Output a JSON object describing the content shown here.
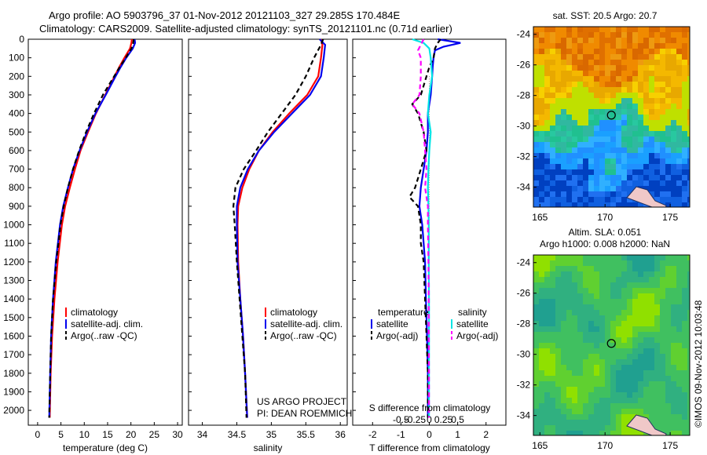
{
  "header": {
    "line1": "Argo profile: AO 5903796_37 01-Nov-2012 20121103_327 29.285S 170.484E",
    "line2": "Climatology: CARS2009. Satellite-adjusted climatology: synTS_20121101.nc (0.71d earlier)"
  },
  "colors": {
    "clim": "#ff0000",
    "sat": "#0000ee",
    "argo": "#000000",
    "sat_s": "#00e5e5",
    "argo_s": "#ff00ff"
  },
  "chart_data": [
    {
      "type": "line",
      "xlabel": "temperature (deg C)",
      "ylabel": "",
      "xlim": [
        -2,
        31
      ],
      "ylim": [
        2080,
        0
      ],
      "xticks": [
        "0",
        "5",
        "10",
        "15",
        "20",
        "25",
        "30"
      ],
      "yticks": [
        "0",
        "100",
        "200",
        "300",
        "400",
        "500",
        "600",
        "700",
        "800",
        "900",
        "1000",
        "1100",
        "1200",
        "1300",
        "1400",
        "1500",
        "1600",
        "1700",
        "1800",
        "1900",
        "2000"
      ],
      "legend": [
        "climatology",
        "satellite-adj. clim.",
        "Argo(..raw -QC)"
      ],
      "series": [
        {
          "name": "climatology",
          "y": [
            0,
            20,
            50,
            100,
            150,
            200,
            300,
            400,
            500,
            600,
            700,
            800,
            900,
            1000,
            1200,
            1400,
            1600,
            1800,
            2040
          ],
          "x": [
            20.2,
            20.1,
            19.8,
            18.6,
            17.5,
            16.5,
            14.5,
            12.5,
            10.8,
            9.2,
            8.0,
            6.9,
            5.9,
            5.2,
            4.3,
            3.6,
            3.1,
            2.8,
            2.6
          ]
        },
        {
          "name": "satellite-adj. clim.",
          "y": [
            0,
            20,
            50,
            100,
            150,
            200,
            300,
            400,
            500,
            600,
            700,
            800,
            900,
            1000,
            1200,
            1400,
            1600,
            1800,
            2040
          ],
          "x": [
            20.8,
            20.9,
            20.4,
            19.0,
            17.8,
            16.7,
            14.6,
            12.4,
            10.6,
            9.0,
            7.6,
            6.5,
            5.5,
            4.8,
            3.9,
            3.3,
            2.9,
            2.7,
            2.5
          ]
        },
        {
          "name": "Argo(..raw -QC)",
          "y": [
            0,
            20,
            50,
            100,
            150,
            200,
            300,
            400,
            500,
            600,
            700,
            800,
            900,
            1000,
            1200,
            1400,
            1600,
            1800,
            2040
          ],
          "x": [
            20.6,
            20.5,
            20.1,
            18.9,
            17.6,
            16.4,
            14.0,
            12.1,
            10.4,
            8.9,
            7.6,
            6.5,
            5.6,
            4.9,
            4.0,
            3.3,
            2.9,
            2.7,
            2.5
          ]
        }
      ]
    },
    {
      "type": "line",
      "xlabel": "salinity",
      "xlim": [
        33.8,
        36.1
      ],
      "ylim": [
        2080,
        0
      ],
      "xticks": [
        "34",
        "34.5",
        "35",
        "35.5",
        "36"
      ],
      "legend": [
        "climatology",
        "satellite-adj. clim.",
        "Argo(..raw -QC)"
      ],
      "series": [
        {
          "name": "climatology",
          "y": [
            0,
            30,
            100,
            200,
            300,
            400,
            500,
            600,
            700,
            800,
            900,
            1000,
            1200,
            1400,
            1600,
            1800,
            2040
          ],
          "x": [
            35.72,
            35.74,
            35.72,
            35.68,
            35.52,
            35.26,
            35.02,
            34.82,
            34.68,
            34.58,
            34.52,
            34.51,
            34.52,
            34.55,
            34.59,
            34.62,
            34.65
          ]
        },
        {
          "name": "satellite-adj. clim.",
          "y": [
            0,
            30,
            100,
            200,
            300,
            400,
            500,
            600,
            700,
            800,
            900,
            1000,
            1200,
            1400,
            1600,
            1800,
            2040
          ],
          "x": [
            35.7,
            35.78,
            35.76,
            35.72,
            35.56,
            35.3,
            35.04,
            34.82,
            34.66,
            34.55,
            34.5,
            34.5,
            34.51,
            34.55,
            34.59,
            34.62,
            34.65
          ]
        },
        {
          "name": "Argo(..raw -QC)",
          "y": [
            0,
            30,
            100,
            200,
            300,
            400,
            500,
            600,
            700,
            800,
            900,
            1000,
            1200,
            1400,
            1600,
            1800,
            2040
          ],
          "x": [
            35.75,
            35.72,
            35.62,
            35.5,
            35.35,
            35.15,
            34.95,
            34.78,
            34.6,
            34.48,
            34.45,
            34.47,
            34.5,
            34.54,
            34.58,
            34.62,
            34.64
          ]
        }
      ]
    },
    {
      "type": "line",
      "xlabel": "T difference from climatology",
      "xlabel_top": "S difference from climatology",
      "xlim": [
        -2.7,
        2.7
      ],
      "ylim": [
        2080,
        0
      ],
      "xticks": [
        "-2",
        "-1",
        "0",
        "1",
        "2"
      ],
      "xticks_top": [
        {
          "v": -1,
          "label": "-0.5"
        },
        {
          "v": -0.5,
          "label": "-0.25"
        },
        {
          "v": 0,
          "label": "0"
        },
        {
          "v": 0.5,
          "label": "0.25"
        },
        {
          "v": 1,
          "label": "0.5"
        }
      ],
      "legend_headers": [
        "temperature",
        "salinity"
      ],
      "legend": [
        "satellite",
        "Argo(-adj)",
        "satellite",
        "Argo(-adj)"
      ],
      "series": [
        {
          "name": "satellite",
          "y": [
            0,
            20,
            40,
            60,
            100,
            150,
            200,
            300,
            400,
            500,
            600,
            700,
            800,
            900,
            1000,
            1200,
            1400,
            1600,
            1800,
            2040
          ],
          "x": [
            0.3,
            1.1,
            0.5,
            0.2,
            0.15,
            0.12,
            0.1,
            0.05,
            -0.05,
            -0.05,
            -0.1,
            -0.2,
            -0.3,
            -0.35,
            -0.25,
            -0.15,
            -0.12,
            -0.08,
            -0.05,
            -0.05
          ]
        },
        {
          "name": "Argo(-adj)",
          "y": [
            0,
            20,
            50,
            100,
            150,
            200,
            300,
            350,
            400,
            500,
            600,
            700,
            800,
            850,
            900,
            1000,
            1100,
            1200,
            1400,
            1600,
            1800,
            2040
          ],
          "x": [
            0.4,
            0.3,
            0.2,
            0.15,
            0.0,
            -0.1,
            -0.3,
            -0.6,
            -0.4,
            -0.2,
            -0.1,
            -0.3,
            -0.5,
            -0.7,
            -0.4,
            -0.3,
            -0.3,
            -0.2,
            -0.15,
            -0.1,
            -0.05,
            -0.05
          ]
        },
        {
          "name": "satellite",
          "y": [
            0,
            20,
            50,
            100,
            200,
            300,
            400,
            500,
            600,
            700,
            800,
            900,
            1000,
            1200,
            1400,
            1600,
            1800,
            2040
          ],
          "x": [
            -0.6,
            -0.2,
            0.0,
            0.05,
            0.1,
            0.0,
            -0.05,
            0.05,
            0.0,
            -0.03,
            -0.05,
            -0.03,
            -0.02,
            -0.02,
            -0.01,
            -0.01,
            -0.01,
            -0.01
          ]
        },
        {
          "name": "Argo(-adj)",
          "y": [
            0,
            30,
            60,
            100,
            200,
            300,
            350,
            400,
            500,
            600,
            700,
            800,
            900,
            1000,
            1200,
            1400,
            1600,
            1800,
            2040
          ],
          "x": [
            -0.2,
            -0.3,
            -0.4,
            -0.3,
            -0.3,
            -0.35,
            -0.6,
            -0.35,
            -0.2,
            -0.15,
            -0.1,
            -0.15,
            -0.05,
            -0.05,
            -0.03,
            -0.02,
            -0.02,
            -0.01,
            -0.01
          ]
        }
      ]
    },
    {
      "type": "heatmap",
      "title": "sat. SST: 20.5 Argo: 20.7",
      "xlim": [
        164.5,
        176.5
      ],
      "ylim": [
        -35.3,
        -23.5
      ],
      "xticks": [
        "165",
        "170",
        "175"
      ],
      "yticks": [
        "-24",
        "-26",
        "-28",
        "-30",
        "-32",
        "-34"
      ],
      "marker": {
        "x": 170.484,
        "y": -29.285
      }
    },
    {
      "type": "heatmap",
      "title": "Altim. SLA: 0.051",
      "subtitle": "Argo h1000: 0.008 h2000: NaN",
      "xlim": [
        164.5,
        176.5
      ],
      "ylim": [
        -35.3,
        -23.5
      ],
      "xticks": [
        "165",
        "170",
        "175"
      ],
      "yticks": [
        "-24",
        "-26",
        "-28",
        "-30",
        "-32",
        "-34"
      ],
      "marker": {
        "x": 170.484,
        "y": -29.285
      }
    }
  ],
  "credits": {
    "project": "US ARGO PROJECT",
    "pi": "PI: DEAN ROEMMICH",
    "timestamp": "©IMOS 09-Nov-2012 10:03:48"
  }
}
